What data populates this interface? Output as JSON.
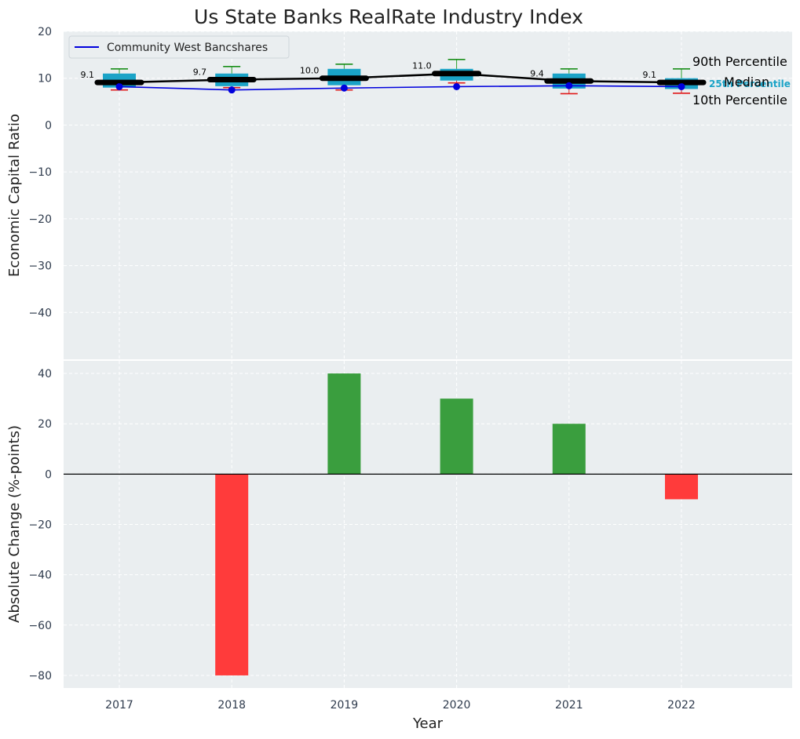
{
  "chart_data": [
    {
      "type": "box",
      "title": "Us State Banks RealRate Industry Index",
      "xlabel": "",
      "ylabel": "Economic Capital Ratio",
      "ylim": [
        -50,
        20
      ],
      "yticks": [
        20,
        10,
        0,
        -10,
        -20,
        -30,
        -40
      ],
      "categories": [
        "2017",
        "2018",
        "2019",
        "2020",
        "2021",
        "2022"
      ],
      "boxes": [
        {
          "year": "2017",
          "p10": 7.5,
          "q1": 8.0,
          "median": 9.1,
          "q3": 11.0,
          "p90": 12.0
        },
        {
          "year": "2018",
          "p10": 8.0,
          "q1": 8.3,
          "median": 9.7,
          "q3": 11.0,
          "p90": 12.5
        },
        {
          "year": "2019",
          "p10": 7.5,
          "q1": 8.5,
          "median": 10.0,
          "q3": 12.0,
          "p90": 13.0
        },
        {
          "year": "2020",
          "p10": 9.0,
          "q1": 9.5,
          "median": 11.0,
          "q3": 12.0,
          "p90": 14.0
        },
        {
          "year": "2021",
          "p10": 6.7,
          "q1": 7.8,
          "median": 9.4,
          "q3": 11.0,
          "p90": 12.0
        },
        {
          "year": "2022",
          "p10": 6.8,
          "q1": 7.7,
          "median": 9.1,
          "q3": 10.0,
          "p90": 12.0
        }
      ],
      "median_labels": [
        "9.1",
        "9.7",
        "10.0",
        "11.0",
        "9.4",
        "9.1"
      ],
      "series": [
        {
          "name": "Community West Bancshares",
          "color": "#0000dd",
          "values": [
            8.2,
            7.5,
            7.9,
            8.2,
            8.4,
            8.2
          ]
        }
      ],
      "annotations": [
        "90th Percentile",
        "Median",
        "25th Percentile",
        "10th Percentile"
      ],
      "legend": "top-left",
      "grid": true
    },
    {
      "type": "bar",
      "xlabel": "Year",
      "ylabel": "Absolute Change (%-points)",
      "ylim": [
        -85,
        45
      ],
      "yticks": [
        40,
        20,
        0,
        -20,
        -40,
        -60,
        -80
      ],
      "categories": [
        "2017",
        "2018",
        "2019",
        "2020",
        "2021",
        "2022"
      ],
      "values": [
        0,
        -80,
        40,
        30,
        20,
        -10
      ],
      "positive_color": "#3a9e3e",
      "negative_color": "#ff3b3b",
      "grid": true
    }
  ]
}
